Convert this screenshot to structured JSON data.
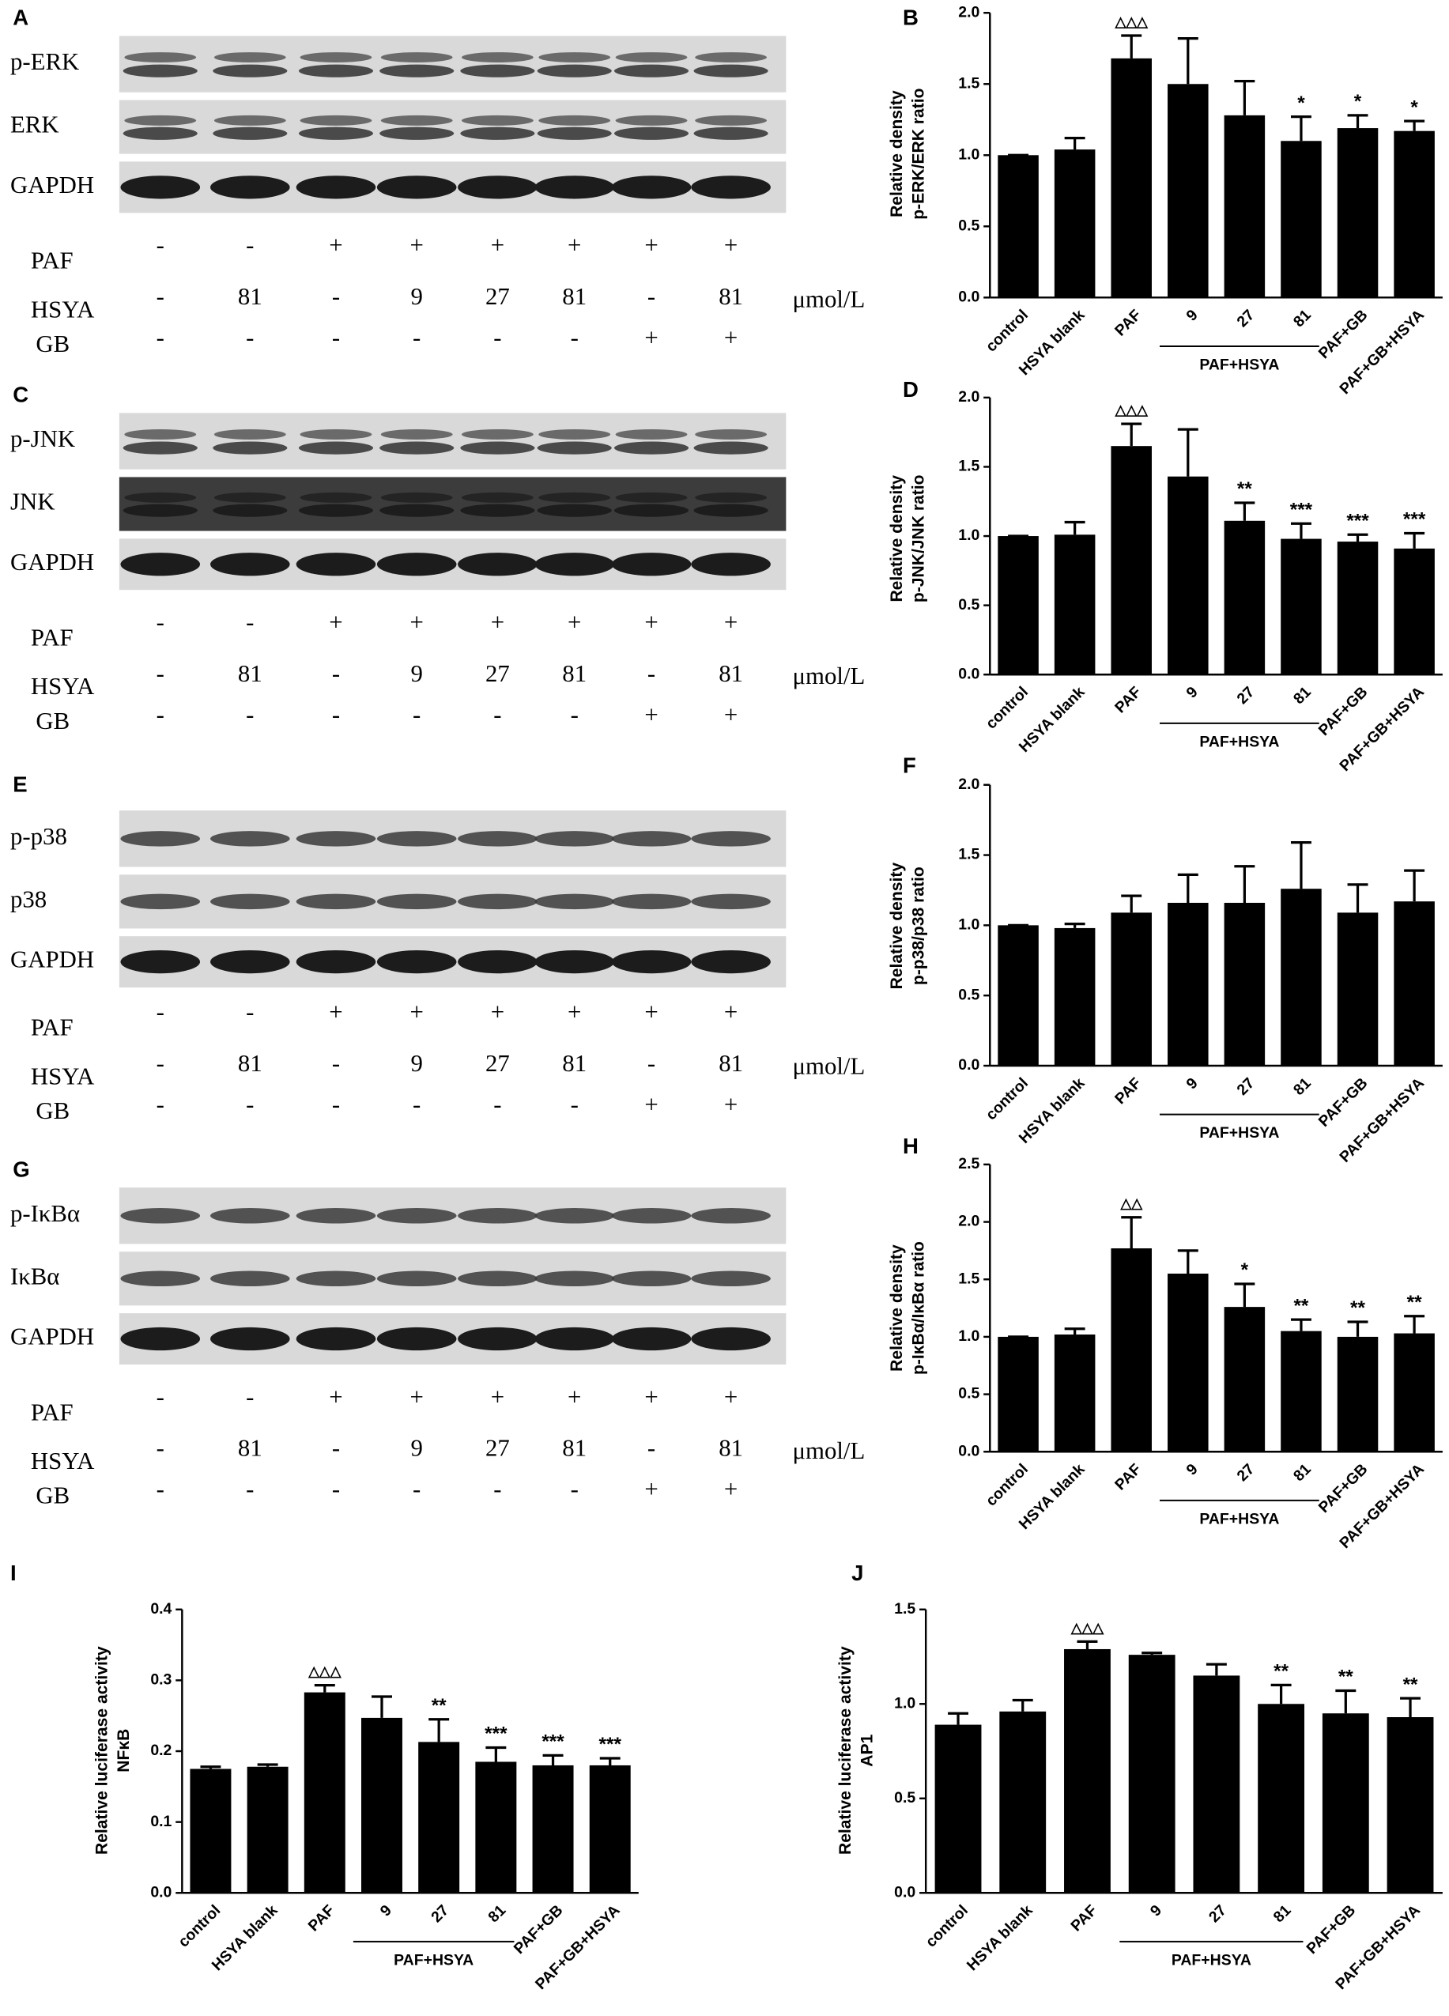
{
  "blots": [
    {
      "panel": "A",
      "rows": [
        "p-ERK",
        "ERK",
        "GAPDH"
      ],
      "treatments": [
        {
          "name": "PAF",
          "values": [
            "-",
            "-",
            "+",
            "+",
            "+",
            "+",
            "+",
            "+"
          ]
        },
        {
          "name": "HSYA",
          "values": [
            "-",
            "81",
            "-",
            "9",
            "27",
            "81",
            "-",
            "81"
          ]
        },
        {
          "name": "GB",
          "values": [
            "-",
            "-",
            "-",
            "-",
            "-",
            "-",
            "+",
            "+"
          ]
        }
      ],
      "unit": "μmol/L"
    },
    {
      "panel": "C",
      "rows": [
        "p-JNK",
        "JNK",
        "GAPDH"
      ],
      "treatments": [
        {
          "name": "PAF",
          "values": [
            "-",
            "-",
            "+",
            "+",
            "+",
            "+",
            "+",
            "+"
          ]
        },
        {
          "name": "HSYA",
          "values": [
            "-",
            "81",
            "-",
            "9",
            "27",
            "81",
            "-",
            "81"
          ]
        },
        {
          "name": "GB",
          "values": [
            "-",
            "-",
            "-",
            "-",
            "-",
            "-",
            "+",
            "+"
          ]
        }
      ],
      "unit": "μmol/L"
    },
    {
      "panel": "E",
      "rows": [
        "p-p38",
        "p38",
        "GAPDH"
      ],
      "treatments": [
        {
          "name": "PAF",
          "values": [
            "-",
            "-",
            "+",
            "+",
            "+",
            "+",
            "+",
            "+"
          ]
        },
        {
          "name": "HSYA",
          "values": [
            "-",
            "81",
            "-",
            "9",
            "27",
            "81",
            "-",
            "81"
          ]
        },
        {
          "name": "GB",
          "values": [
            "-",
            "-",
            "-",
            "-",
            "-",
            "-",
            "+",
            "+"
          ]
        }
      ],
      "unit": "μmol/L"
    },
    {
      "panel": "G",
      "rows": [
        "p-IκBα",
        "IκBα",
        "GAPDH"
      ],
      "treatments": [
        {
          "name": "PAF",
          "values": [
            "-",
            "-",
            "+",
            "+",
            "+",
            "+",
            "+",
            "+"
          ]
        },
        {
          "name": "HSYA",
          "values": [
            "-",
            "81",
            "-",
            "9",
            "27",
            "81",
            "-",
            "81"
          ]
        },
        {
          "name": "GB",
          "values": [
            "-",
            "-",
            "-",
            "-",
            "-",
            "-",
            "+",
            "+"
          ]
        }
      ],
      "unit": "μmol/L"
    }
  ],
  "chart_data": [
    {
      "type": "bar",
      "panel": "B",
      "ylabel": [
        "Relative density",
        "p-ERK/ERK ratio"
      ],
      "categories": [
        "control",
        "HSYA blank",
        "PAF",
        "9",
        "27",
        "81",
        "PAF+GB",
        "PAF+GB+HSYA"
      ],
      "group_label": "PAF+HSYA",
      "color": "#000000",
      "values": [
        1.0,
        1.04,
        1.68,
        1.5,
        1.28,
        1.1,
        1.19,
        1.17
      ],
      "errors": [
        0,
        0.08,
        0.16,
        0.32,
        0.24,
        0.17,
        0.09,
        0.07
      ],
      "annotations": [
        null,
        null,
        "△△△",
        null,
        null,
        "*",
        "*",
        "*"
      ],
      "ylim": [
        0,
        2
      ],
      "yticks": [
        {
          "value": 0,
          "label": "0.0"
        },
        {
          "value": 0.5,
          "label": "0.5"
        },
        {
          "value": 1,
          "label": "1.0"
        },
        {
          "value": 1.5,
          "label": "1.5"
        },
        {
          "value": 2,
          "label": "2.0"
        }
      ]
    },
    {
      "type": "bar",
      "panel": "D",
      "ylabel": [
        "Relative density",
        "p-JNK/JNK ratio"
      ],
      "categories": [
        "control",
        "HSYA blank",
        "PAF",
        "9",
        "27",
        "81",
        "PAF+GB",
        "PAF+GB+HSYA"
      ],
      "group_label": "PAF+HSYA",
      "color": "#000000",
      "values": [
        1.0,
        1.01,
        1.65,
        1.43,
        1.11,
        0.98,
        0.96,
        0.91
      ],
      "errors": [
        0,
        0.09,
        0.16,
        0.34,
        0.13,
        0.11,
        0.05,
        0.11
      ],
      "annotations": [
        null,
        null,
        "△△△",
        null,
        "**",
        "***",
        "***",
        "***"
      ],
      "ylim": [
        0,
        2
      ],
      "yticks": [
        {
          "value": 0,
          "label": "0.0"
        },
        {
          "value": 0.5,
          "label": "0.5"
        },
        {
          "value": 1,
          "label": "1.0"
        },
        {
          "value": 1.5,
          "label": "1.5"
        },
        {
          "value": 2,
          "label": "2.0"
        }
      ]
    },
    {
      "type": "bar",
      "panel": "F",
      "ylabel": [
        "Relative density",
        "p-p38/p38 ratio"
      ],
      "categories": [
        "control",
        "HSYA blank",
        "PAF",
        "9",
        "27",
        "81",
        "PAF+GB",
        "PAF+GB+HSYA"
      ],
      "group_label": "PAF+HSYA",
      "color": "#000000",
      "values": [
        1.0,
        0.98,
        1.09,
        1.16,
        1.16,
        1.26,
        1.09,
        1.17
      ],
      "errors": [
        0,
        0.03,
        0.12,
        0.2,
        0.26,
        0.33,
        0.2,
        0.22
      ],
      "ylim": [
        0,
        2
      ],
      "yticks": [
        {
          "value": 0,
          "label": "0.0"
        },
        {
          "value": 0.5,
          "label": "0.5"
        },
        {
          "value": 1,
          "label": "1.0"
        },
        {
          "value": 1.5,
          "label": "1.5"
        },
        {
          "value": 2,
          "label": "2.0"
        }
      ]
    },
    {
      "type": "bar",
      "panel": "H",
      "ylabel": [
        "Relative density",
        "p-IκBα/IκBα ratio"
      ],
      "categories": [
        "control",
        "HSYA blank",
        "PAF",
        "9",
        "27",
        "81",
        "PAF+GB",
        "PAF+GB+HSYA"
      ],
      "group_label": "PAF+HSYA",
      "color": "#000000",
      "values": [
        1.0,
        1.02,
        1.77,
        1.55,
        1.26,
        1.05,
        1.0,
        1.03
      ],
      "errors": [
        0,
        0.05,
        0.27,
        0.2,
        0.2,
        0.1,
        0.13,
        0.15
      ],
      "annotations": [
        null,
        null,
        "△△",
        null,
        "*",
        "**",
        "**",
        "**"
      ],
      "ylim": [
        0,
        2.5
      ],
      "yticks": [
        {
          "value": 0,
          "label": "0.0"
        },
        {
          "value": 0.5,
          "label": "0.5"
        },
        {
          "value": 1,
          "label": "1.0"
        },
        {
          "value": 1.5,
          "label": "1.5"
        },
        {
          "value": 2,
          "label": "2.0"
        },
        {
          "value": 2.5,
          "label": "2.5"
        }
      ]
    },
    {
      "type": "bar",
      "panel": "I",
      "ylabel": [
        "Relative luciferase activity",
        "NFκB"
      ],
      "categories": [
        "control",
        "HSYA blank",
        "PAF",
        "9",
        "27",
        "81",
        "PAF+GB",
        "PAF+GB+HSYA"
      ],
      "group_label": "PAF+HSYA",
      "color": "#000000",
      "values": [
        0.175,
        0.178,
        0.283,
        0.247,
        0.213,
        0.185,
        0.18,
        0.18
      ],
      "errors": [
        0.003,
        0.003,
        0.01,
        0.03,
        0.032,
        0.02,
        0.014,
        0.01
      ],
      "annotations": [
        null,
        null,
        "△△△",
        null,
        "**",
        "***",
        "***",
        "***"
      ],
      "ylim": [
        0,
        0.4
      ],
      "yticks": [
        {
          "value": 0,
          "label": "0.0"
        },
        0.1,
        0.2,
        0.3,
        0.4
      ]
    },
    {
      "type": "bar",
      "panel": "J",
      "ylabel": [
        "Relative luciferase activity",
        "AP1"
      ],
      "categories": [
        "control",
        "HSYA blank",
        "PAF",
        "9",
        "27",
        "81",
        "PAF+GB",
        "PAF+GB+HSYA"
      ],
      "group_label": "PAF+HSYA",
      "color": "#000000",
      "values": [
        0.89,
        0.96,
        1.29,
        1.26,
        1.15,
        1.0,
        0.95,
        0.93
      ],
      "errors": [
        0.06,
        0.06,
        0.04,
        0.01,
        0.06,
        0.1,
        0.12,
        0.1
      ],
      "annotations": [
        null,
        null,
        "△△△",
        null,
        null,
        "**",
        "**",
        "**"
      ],
      "ylim": [
        0,
        1.5
      ],
      "yticks": [
        {
          "value": 0,
          "label": "0.0"
        },
        {
          "value": 0.5,
          "label": "0.5"
        },
        {
          "value": 1,
          "label": "1.0"
        },
        {
          "value": 1.5,
          "label": "1.5"
        }
      ]
    }
  ]
}
